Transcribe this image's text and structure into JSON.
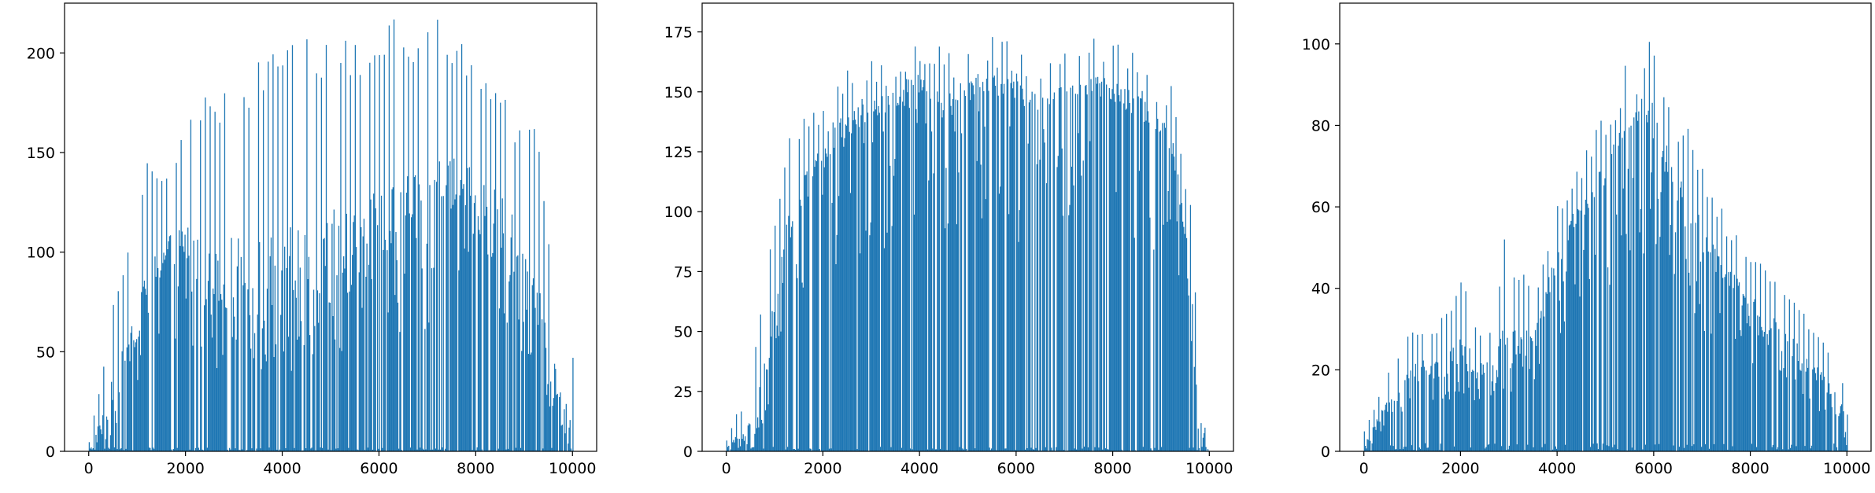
{
  "figure": {
    "bar_color": "#1f77b4",
    "background": "#ffffff"
  },
  "chart_data": [
    {
      "type": "bar",
      "title": "",
      "xlabel": "",
      "ylabel": "",
      "xlim": [
        -500,
        10500
      ],
      "ylim": [
        0,
        225
      ],
      "xticks": [
        0,
        2000,
        4000,
        6000,
        8000,
        10000
      ],
      "yticks": [
        0,
        50,
        100,
        150,
        200
      ],
      "grid": false,
      "envelope_peaks": [
        [
          0,
          5
        ],
        [
          300,
          45
        ],
        [
          500,
          80
        ],
        [
          800,
          100
        ],
        [
          1200,
          152
        ],
        [
          1600,
          140
        ],
        [
          2000,
          168
        ],
        [
          2400,
          190
        ],
        [
          2800,
          180
        ],
        [
          3200,
          185
        ],
        [
          3600,
          200
        ],
        [
          4000,
          210
        ],
        [
          4400,
          210
        ],
        [
          4800,
          205
        ],
        [
          5200,
          210
        ],
        [
          5600,
          205
        ],
        [
          6000,
          210
        ],
        [
          6400,
          222
        ],
        [
          6800,
          212
        ],
        [
          7200,
          222
        ],
        [
          7600,
          210
        ],
        [
          8000,
          202
        ],
        [
          8400,
          190
        ],
        [
          8800,
          170
        ],
        [
          9200,
          170
        ],
        [
          9600,
          93
        ],
        [
          9900,
          47
        ],
        [
          10000,
          47
        ]
      ],
      "envelope_floor": [
        [
          0,
          0
        ],
        [
          400,
          10
        ],
        [
          800,
          40
        ],
        [
          1200,
          75
        ],
        [
          1600,
          90
        ],
        [
          2000,
          92
        ],
        [
          2400,
          72
        ],
        [
          2800,
          68
        ],
        [
          3200,
          68
        ],
        [
          3600,
          62
        ],
        [
          4000,
          52
        ],
        [
          4400,
          72
        ],
        [
          4800,
          75
        ],
        [
          5200,
          75
        ],
        [
          5600,
          82
        ],
        [
          6000,
          92
        ],
        [
          6400,
          100
        ],
        [
          6800,
          98
        ],
        [
          7200,
          110
        ],
        [
          7600,
          120
        ],
        [
          8000,
          118
        ],
        [
          8400,
          102
        ],
        [
          8800,
          90
        ],
        [
          9200,
          72
        ],
        [
          9600,
          28
        ],
        [
          9900,
          5
        ],
        [
          10000,
          0
        ]
      ]
    },
    {
      "type": "bar",
      "title": "",
      "xlabel": "",
      "ylabel": "",
      "xlim": [
        -500,
        10500
      ],
      "ylim": [
        0,
        187
      ],
      "xticks": [
        0,
        2000,
        4000,
        6000,
        8000,
        10000
      ],
      "yticks": [
        0,
        25,
        50,
        75,
        100,
        125,
        150,
        175
      ],
      "grid": false,
      "envelope_peaks": [
        [
          0,
          5
        ],
        [
          200,
          16
        ],
        [
          400,
          19
        ],
        [
          600,
          46
        ],
        [
          800,
          75
        ],
        [
          1000,
          102
        ],
        [
          1200,
          125
        ],
        [
          1400,
          138
        ],
        [
          1600,
          143
        ],
        [
          1800,
          145
        ],
        [
          2000,
          145
        ],
        [
          2200,
          150
        ],
        [
          2400,
          162
        ],
        [
          2800,
          163
        ],
        [
          3200,
          168
        ],
        [
          3600,
          170
        ],
        [
          3800,
          174
        ],
        [
          4200,
          170
        ],
        [
          4600,
          168
        ],
        [
          5200,
          170
        ],
        [
          5800,
          176
        ],
        [
          6400,
          168
        ],
        [
          7200,
          173
        ],
        [
          7800,
          174
        ],
        [
          8200,
          172
        ],
        [
          8600,
          165
        ],
        [
          9000,
          160
        ],
        [
          9300,
          150
        ],
        [
          9600,
          105
        ],
        [
          9900,
          10
        ],
        [
          10000,
          0
        ]
      ],
      "envelope_floor": [
        [
          0,
          0
        ],
        [
          600,
          5
        ],
        [
          800,
          20
        ],
        [
          1000,
          55
        ],
        [
          1200,
          80
        ],
        [
          1600,
          100
        ],
        [
          2000,
          120
        ],
        [
          2400,
          130
        ],
        [
          2800,
          135
        ],
        [
          3200,
          140
        ],
        [
          3600,
          145
        ],
        [
          4000,
          150
        ],
        [
          4400,
          140
        ],
        [
          4800,
          145
        ],
        [
          5200,
          150
        ],
        [
          5600,
          148
        ],
        [
          6000,
          145
        ],
        [
          6400,
          140
        ],
        [
          6800,
          145
        ],
        [
          7200,
          148
        ],
        [
          7600,
          148
        ],
        [
          8000,
          145
        ],
        [
          8400,
          140
        ],
        [
          8800,
          135
        ],
        [
          9200,
          125
        ],
        [
          9500,
          80
        ],
        [
          9800,
          5
        ],
        [
          10000,
          0
        ]
      ]
    },
    {
      "type": "bar",
      "title": "",
      "xlabel": "",
      "ylabel": "",
      "xlim": [
        -500,
        10500
      ],
      "ylim": [
        0,
        110
      ],
      "xticks": [
        0,
        2000,
        4000,
        6000,
        8000,
        10000
      ],
      "yticks": [
        0,
        20,
        40,
        60,
        80,
        100
      ],
      "grid": false,
      "envelope_peaks": [
        [
          0,
          5
        ],
        [
          300,
          14
        ],
        [
          600,
          22
        ],
        [
          1000,
          31
        ],
        [
          1400,
          30
        ],
        [
          1800,
          38
        ],
        [
          2000,
          46
        ],
        [
          2300,
          32
        ],
        [
          2600,
          30
        ],
        [
          2900,
          52
        ],
        [
          3200,
          44
        ],
        [
          3600,
          42
        ],
        [
          4000,
          62
        ],
        [
          4400,
          70
        ],
        [
          4800,
          80
        ],
        [
          5200,
          88
        ],
        [
          5500,
          100
        ],
        [
          5700,
          104
        ],
        [
          5900,
          104
        ],
        [
          6100,
          96
        ],
        [
          6400,
          84
        ],
        [
          6800,
          78
        ],
        [
          7200,
          66
        ],
        [
          7600,
          56
        ],
        [
          8000,
          50
        ],
        [
          8400,
          45
        ],
        [
          8800,
          40
        ],
        [
          9200,
          32
        ],
        [
          9600,
          25
        ],
        [
          9900,
          18
        ],
        [
          10000,
          10
        ]
      ],
      "envelope_floor": [
        [
          0,
          0
        ],
        [
          400,
          8
        ],
        [
          800,
          14
        ],
        [
          1200,
          18
        ],
        [
          1600,
          18
        ],
        [
          2000,
          20
        ],
        [
          2400,
          18
        ],
        [
          2800,
          20
        ],
        [
          3200,
          22
        ],
        [
          3600,
          28
        ],
        [
          4000,
          45
        ],
        [
          4400,
          55
        ],
        [
          4800,
          62
        ],
        [
          5200,
          70
        ],
        [
          5600,
          80
        ],
        [
          6000,
          78
        ],
        [
          6400,
          62
        ],
        [
          6800,
          52
        ],
        [
          7200,
          45
        ],
        [
          7600,
          38
        ],
        [
          8000,
          32
        ],
        [
          8400,
          28
        ],
        [
          8800,
          24
        ],
        [
          9200,
          18
        ],
        [
          9600,
          14
        ],
        [
          9900,
          8
        ],
        [
          10000,
          0
        ]
      ]
    }
  ]
}
